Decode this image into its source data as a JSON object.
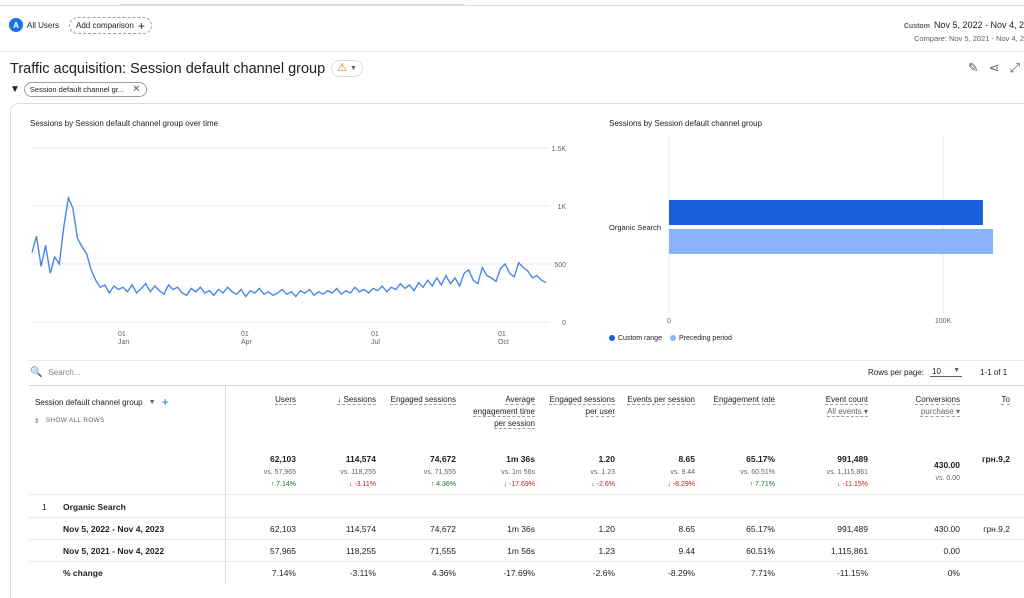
{
  "header": {
    "segment_avatar": "A",
    "segment_label": "All Users",
    "add_comparison": "Add comparison",
    "date_label": "Custom",
    "date_range": "Nov 5, 2022 - Nov 4, 2",
    "compare_range": "Compare: Nov 5, 2021 - Nov 4, 2"
  },
  "title": {
    "text": "Traffic acquisition: Session default channel group",
    "warning_icon": "warning-icon"
  },
  "filter": {
    "chip_label": "Session default channel gr..."
  },
  "line_chart": {
    "title": "Sessions by Session default channel group over time",
    "y_ticks": [
      "1.5K",
      "1K",
      "500",
      "0"
    ],
    "x_ticks": [
      {
        "day": "01",
        "month": "Jan"
      },
      {
        "day": "01",
        "month": "Apr"
      },
      {
        "day": "01",
        "month": "Jul"
      },
      {
        "day": "01",
        "month": "Oct"
      }
    ],
    "color": "#4a86e8"
  },
  "bar_chart": {
    "title": "Sessions by Session default channel group",
    "category": "Organic Search",
    "x_ticks": [
      "0",
      "100K"
    ],
    "legend": [
      {
        "label": "Custom range",
        "color": "#1a5fdc"
      },
      {
        "label": "Preceding period",
        "color": "#8ab4f8"
      }
    ]
  },
  "table_controls": {
    "search_placeholder": "Search...",
    "rows_per_page_label": "Rows per page:",
    "rows_per_page_value": "10",
    "pagination": "1-1 of 1"
  },
  "table": {
    "dimension_header": "Session default channel group",
    "show_all_rows": "SHOW ALL ROWS",
    "columns": [
      {
        "label": "Users",
        "total": "62,103",
        "vs": "vs. 57,965",
        "change": "7.14%",
        "dir": "up"
      },
      {
        "label": "Sessions",
        "total": "114,574",
        "vs": "vs. 118,255",
        "change": "-3.11%",
        "dir": "down"
      },
      {
        "label": "Engaged sessions",
        "total": "74,672",
        "vs": "vs. 71,555",
        "change": "4.36%",
        "dir": "up"
      },
      {
        "label": "Average engagement time per session",
        "total": "1m 36s",
        "vs": "vs. 1m 56s",
        "change": "-17.69%",
        "dir": "down"
      },
      {
        "label": "Engaged sessions per user",
        "total": "1.20",
        "vs": "vs. 1.23",
        "change": "-2.6%",
        "dir": "down"
      },
      {
        "label": "Events per session",
        "total": "8.65",
        "vs": "vs. 9.44",
        "change": "-8.29%",
        "dir": "down"
      },
      {
        "label": "Engagement rate",
        "total": "65.17%",
        "vs": "vs. 60.51%",
        "change": "7.71%",
        "dir": "up"
      },
      {
        "label": "Event count",
        "sub": "All events",
        "total": "991,489",
        "vs": "vs. 1,115,861",
        "change": "-11.15%",
        "dir": "down"
      },
      {
        "label": "Conversions",
        "sub": "purchase",
        "total": "430.00",
        "vs": "vs. 0.00",
        "change": "",
        "dir": ""
      },
      {
        "label": "To",
        "total": "грн.9,2",
        "vs": "",
        "change": "",
        "dir": ""
      }
    ],
    "row_number": "1",
    "row_dimension": "Organic Search",
    "rows": [
      {
        "label": "Nov 5, 2022 - Nov 4, 2023",
        "values": [
          "62,103",
          "114,574",
          "74,672",
          "1m 36s",
          "1.20",
          "8.65",
          "65.17%",
          "991,489",
          "430.00",
          "грн.9,2"
        ]
      },
      {
        "label": "Nov 5, 2021 - Nov 4, 2022",
        "values": [
          "57,965",
          "118,255",
          "71,555",
          "1m 56s",
          "1.23",
          "9.44",
          "60.51%",
          "1,115,861",
          "0.00",
          ""
        ]
      },
      {
        "label": "% change",
        "values": [
          "7.14%",
          "-3.11%",
          "4.36%",
          "-17.69%",
          "-2.6%",
          "-8.29%",
          "7.71%",
          "-11.15%",
          "0%",
          ""
        ]
      }
    ]
  },
  "chart_data": [
    {
      "type": "line",
      "title": "Sessions by Session default channel group over time",
      "ylim": [
        0,
        1500
      ],
      "y_ticks": [
        0,
        500,
        1000,
        1500
      ],
      "x_ticks": [
        "01 Jan",
        "01 Apr",
        "01 Jul",
        "01 Oct"
      ],
      "series": [
        {
          "values": [
            600,
            740,
            480,
            660,
            420,
            560,
            500,
            820,
            1070,
            980,
            720,
            650,
            590,
            450,
            360,
            300,
            320,
            250,
            310,
            280,
            300,
            260,
            320,
            250,
            290,
            330,
            260,
            310,
            270,
            240,
            320,
            280,
            300,
            250,
            230,
            290,
            260,
            300,
            250,
            270,
            230,
            280,
            250,
            300,
            260,
            240,
            280,
            220,
            270,
            250,
            290,
            240,
            260,
            230,
            250,
            280,
            240,
            260,
            220,
            270,
            250,
            280,
            230,
            260,
            240,
            270,
            250,
            290,
            240,
            270,
            250,
            300,
            260,
            280,
            250,
            290,
            270,
            310,
            260,
            300,
            280,
            330,
            290,
            320,
            270,
            340,
            300,
            360,
            310,
            380,
            320,
            400,
            330,
            380,
            310,
            420,
            450,
            360,
            330,
            470,
            400,
            380,
            350,
            460,
            500,
            420,
            390,
            510,
            470,
            440,
            380,
            400,
            360,
            340
          ]
        }
      ]
    },
    {
      "type": "bar",
      "title": "Sessions by Session default channel group",
      "categories": [
        "Organic Search"
      ],
      "xlim": [
        0,
        118000
      ],
      "series": [
        {
          "name": "Custom range",
          "values": [
            114574
          ]
        },
        {
          "name": "Preceding period",
          "values": [
            118255
          ]
        }
      ]
    }
  ]
}
